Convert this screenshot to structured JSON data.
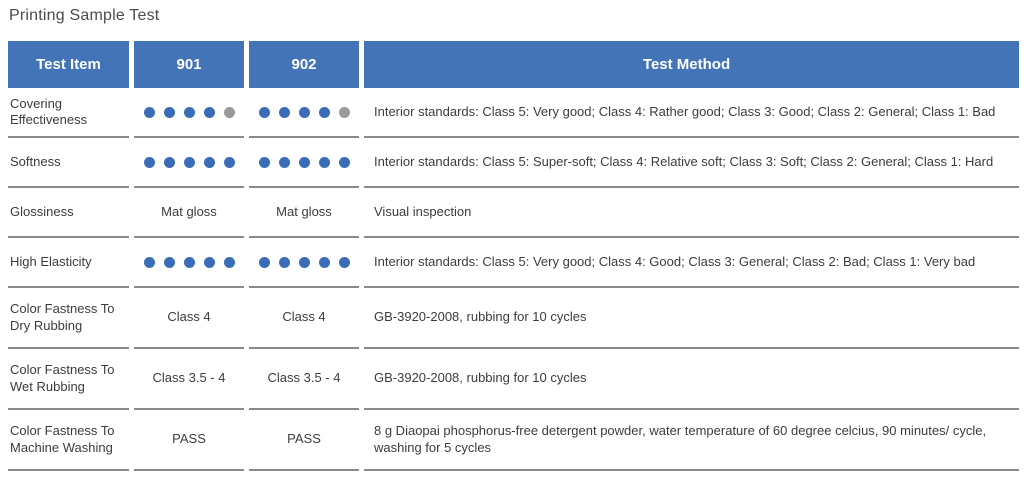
{
  "page_title": "Printing Sample Test",
  "colors": {
    "header_bg": "#4474B8",
    "header_text": "#FFFFFF",
    "dot_blue": "#3A6CB7",
    "dot_gray": "#9A9A9A",
    "divider": "#8A8A8A",
    "body_text": "#3C3C3C",
    "title_text": "#4A4A4A"
  },
  "table": {
    "columns": [
      {
        "label": "Test Item"
      },
      {
        "label": "901"
      },
      {
        "label": "902"
      },
      {
        "label": "Test Method"
      }
    ],
    "rows": [
      {
        "test_item": "Covering Effectiveness",
        "col_901": {
          "type": "dots",
          "blue": 4,
          "gray": 1
        },
        "col_902": {
          "type": "dots",
          "blue": 4,
          "gray": 1
        },
        "test_method": "Interior standards: Class 5: Very good; Class 4: Rather good; Class 3: Good; Class 2: General; Class 1: Bad"
      },
      {
        "test_item": "Softness",
        "col_901": {
          "type": "dots",
          "blue": 5,
          "gray": 0
        },
        "col_902": {
          "type": "dots",
          "blue": 5,
          "gray": 0
        },
        "test_method": "Interior standards: Class 5: Super-soft; Class 4: Relative soft; Class 3: Soft; Class 2: General; Class 1: Hard"
      },
      {
        "test_item": "Glossiness",
        "col_901": {
          "type": "text",
          "value": "Mat gloss"
        },
        "col_902": {
          "type": "text",
          "value": "Mat gloss"
        },
        "test_method": "Visual inspection"
      },
      {
        "test_item": "High Elasticity",
        "col_901": {
          "type": "dots",
          "blue": 5,
          "gray": 0
        },
        "col_902": {
          "type": "dots",
          "blue": 5,
          "gray": 0
        },
        "test_method": "Interior standards: Class 5: Very good; Class 4: Good; Class 3: General; Class 2: Bad; Class 1: Very bad"
      },
      {
        "test_item": "Color Fastness To Dry Rubbing",
        "col_901": {
          "type": "text",
          "value": "Class 4"
        },
        "col_902": {
          "type": "text",
          "value": "Class 4"
        },
        "test_method": "GB-3920-2008, rubbing for 10 cycles"
      },
      {
        "test_item": "Color Fastness To Wet Rubbing",
        "col_901": {
          "type": "text",
          "value": "Class 3.5 - 4"
        },
        "col_902": {
          "type": "text",
          "value": "Class 3.5 - 4"
        },
        "test_method": "GB-3920-2008, rubbing for 10 cycles"
      },
      {
        "test_item": "Color Fastness To Machine Washing",
        "col_901": {
          "type": "text",
          "value": "PASS"
        },
        "col_902": {
          "type": "text",
          "value": "PASS"
        },
        "test_method": "8 g Diaopai phosphorus-free detergent powder, water temperature of 60 degree celcius, 90 minutes/ cycle, washing for 5 cycles"
      }
    ]
  }
}
